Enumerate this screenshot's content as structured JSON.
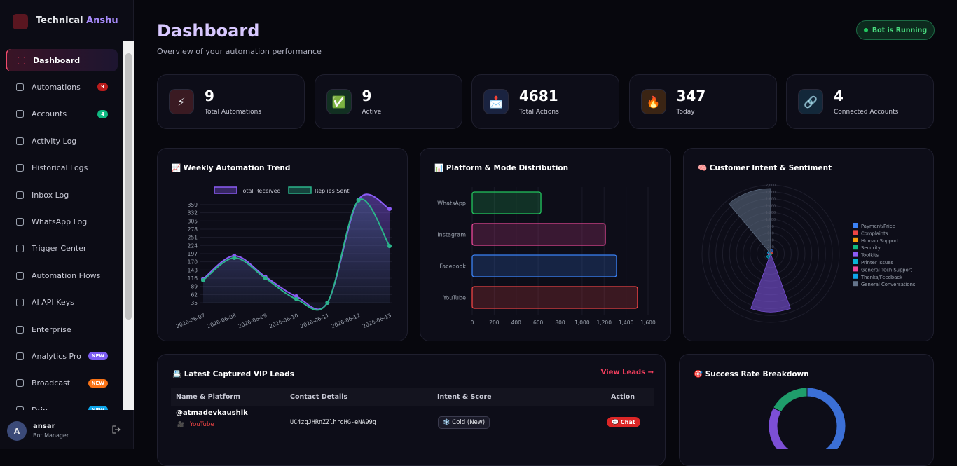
{
  "brand": {
    "first": "Technical",
    "second": "Anshu"
  },
  "nav": [
    {
      "label": "Dashboard",
      "active": true
    },
    {
      "label": "Automations",
      "badge": 9,
      "badge_color": "#b91c1c"
    },
    {
      "label": "Accounts",
      "badge": 4,
      "badge_color": "#10b981"
    },
    {
      "label": "Activity Log"
    },
    {
      "label": "Historical Logs"
    },
    {
      "label": "Inbox Log"
    },
    {
      "label": "WhatsApp Log"
    },
    {
      "label": "Trigger Center"
    },
    {
      "label": "Automation Flows"
    },
    {
      "label": "AI API Keys"
    },
    {
      "label": "Enterprise"
    },
    {
      "label": "Analytics Pro",
      "badge": "NEW",
      "badge_color": "#7c5cf0"
    },
    {
      "label": "Broadcast",
      "badge": "NEW",
      "badge_color": "#f97316"
    },
    {
      "label": "Drip",
      "badge": "NEW",
      "badge_color": "#0ea5e9"
    }
  ],
  "user": {
    "initial": "A",
    "name": "ansar",
    "role": "Bot Manager"
  },
  "header": {
    "title": "Dashboard",
    "subtitle": "Overview of your automation performance",
    "status": "Bot is Running"
  },
  "stats": [
    {
      "icon": "⚡",
      "value": 9,
      "label": "Total Automations",
      "color": "#3a1a22"
    },
    {
      "icon": "✅",
      "value": 9,
      "label": "Active",
      "color": "#123022"
    },
    {
      "icon": "📩",
      "value": 4681,
      "label": "Total Actions",
      "color": "#1a2340"
    },
    {
      "icon": "🔥",
      "value": 347,
      "label": "Today",
      "color": "#3a2414"
    },
    {
      "icon": "🔗",
      "value": 4,
      "label": "Connected Accounts",
      "color": "#13283a"
    }
  ],
  "chart_data": [
    {
      "type": "line",
      "title": "📈 Weekly Automation Trend",
      "categories": [
        "2026-06-07",
        "2026-06-08",
        "2026-06-09",
        "2026-06-10",
        "2026-06-11",
        "2026-06-12",
        "2026-06-13"
      ],
      "series": [
        {
          "name": "Total Received",
          "color": "#8b5cf6",
          "values": [
            113,
            190,
            121,
            56,
            35,
            375,
            345
          ]
        },
        {
          "name": "Replies Sent",
          "color": "#2bb38a",
          "values": [
            109,
            183,
            116,
            47,
            35,
            373,
            222
          ]
        }
      ],
      "ylim": [
        35,
        375
      ],
      "yticks": [
        35,
        62,
        89,
        116,
        143,
        170,
        197,
        224,
        251,
        278,
        305,
        332,
        359
      ],
      "grid": true
    },
    {
      "type": "hbar",
      "title": "📊 Platform & Mode Distribution",
      "categories": [
        "WhatsApp",
        "Instagram",
        "Facebook",
        "YouTube"
      ],
      "values": [
        625,
        1211,
        1313,
        1504
      ],
      "colors": [
        "#22c55e",
        "#ec4899",
        "#3b82f6",
        "#ef4444"
      ],
      "xlim": [
        0,
        1600
      ],
      "xticks": [
        0,
        200,
        400,
        600,
        800,
        {
          "value": 1000,
          "label": "1,000"
        },
        {
          "value": 1200,
          "label": "1,200"
        },
        {
          "value": 1400,
          "label": "1,400"
        },
        {
          "value": 1600,
          "label": "1,600"
        }
      ],
      "grid": true
    },
    {
      "type": "polar",
      "title": "🧠 Customer Intent & Sentiment",
      "categories": [
        "Payment/Price",
        "Complaints",
        "Human Support",
        "Security",
        "Toolkits",
        "Printer Issues",
        "General Tech Support",
        "Thanks/Feedback",
        "General Conversations"
      ],
      "values": [
        120,
        60,
        30,
        40,
        1700,
        150,
        80,
        100,
        1900
      ],
      "colors": [
        "#3b82f6",
        "#ef4444",
        "#f59e0b",
        "#10b981",
        "#8b5cf6",
        "#06b6d4",
        "#ec4899",
        "#0ea5e9",
        "#64748b"
      ],
      "rlim": [
        0,
        2000
      ],
      "rticks": [
        0,
        200,
        400,
        600,
        800,
        {
          "value": 1000,
          "label": "1,000"
        },
        {
          "value": 1200,
          "label": "1,200"
        },
        {
          "value": 1400,
          "label": "1,400"
        },
        {
          "value": 1600,
          "label": "1,600"
        },
        {
          "value": 1800,
          "label": "1,800"
        },
        {
          "value": 2000,
          "label": "2,000"
        }
      ]
    },
    {
      "type": "doughnut",
      "title": "🎯 Success Rate Breakdown",
      "values": [
        58,
        25,
        17
      ],
      "colors": [
        "#3b6fd6",
        "#7c4fd6",
        "#1f9d6b"
      ]
    }
  ],
  "leads": {
    "title": "📇 Latest Captured VIP Leads",
    "link": "View Leads →",
    "columns": [
      "Name & Platform",
      "Contact Details",
      "Intent & Score",
      "Action"
    ],
    "rows": [
      {
        "handle": "@atmadevkaushik",
        "platform_icon": "🎥",
        "platform": "YouTube",
        "contact": "UC4zqJHRnZZlhrqHG-eNA99g",
        "intent": "❄️ Cold (New)",
        "action": "💬 Chat"
      }
    ]
  }
}
